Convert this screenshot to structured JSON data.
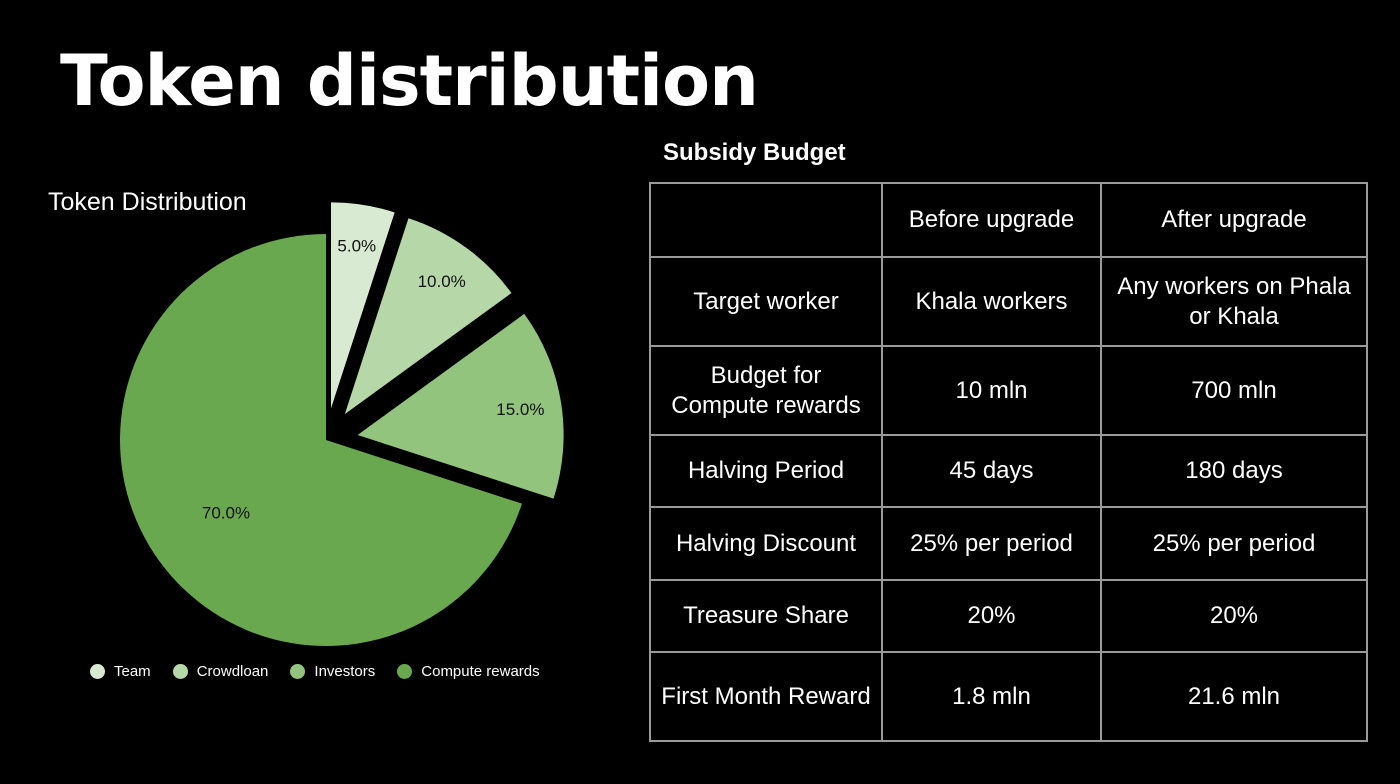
{
  "slide": {
    "title": "Token distribution"
  },
  "chart_data": {
    "type": "pie",
    "title": "Token Distribution",
    "slices": [
      {
        "name": "Team",
        "value": 5.0,
        "label": "5.0%",
        "color": "#d9ead3"
      },
      {
        "name": "Crowdloan",
        "value": 10.0,
        "label": "10.0%",
        "color": "#b6d7a8"
      },
      {
        "name": "Investors",
        "value": 15.0,
        "label": "15.0%",
        "color": "#93c47d"
      },
      {
        "name": "Compute rewards",
        "value": 70.0,
        "label": "70.0%",
        "color": "#6aa84f"
      }
    ],
    "exploded": [
      "Team",
      "Crowdloan",
      "Investors"
    ],
    "legend_position": "bottom"
  },
  "table": {
    "title": "Subsidy Budget",
    "header": [
      "",
      "Before upgrade",
      "After upgrade"
    ],
    "rows": [
      [
        "Target worker",
        "Khala workers",
        "Any workers on Phala or Khala"
      ],
      [
        "Budget for Compute rewards",
        "10 mln",
        "700 mln"
      ],
      [
        "Halving Period",
        "45 days",
        "180 days"
      ],
      [
        "Halving Discount",
        "25% per period",
        "25% per period"
      ],
      [
        "Treasure Share",
        "20%",
        "20%"
      ],
      [
        "First Month Reward",
        "1.8 mln",
        "21.6 mln"
      ]
    ]
  }
}
